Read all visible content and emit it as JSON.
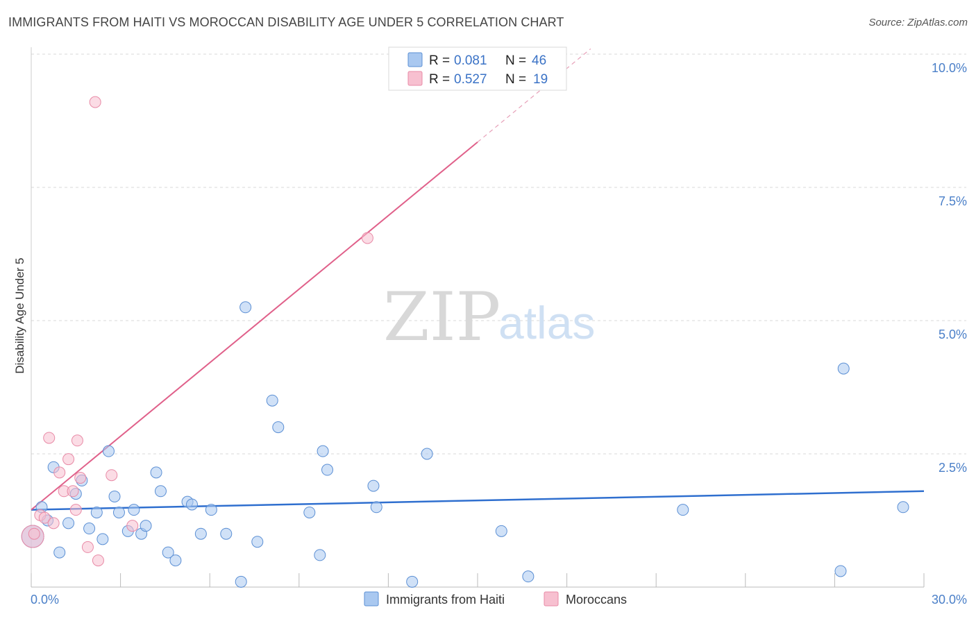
{
  "title": "IMMIGRANTS FROM HAITI VS MOROCCAN DISABILITY AGE UNDER 5 CORRELATION CHART",
  "source": "Source: ZipAtlas.com",
  "watermark": {
    "zip": "ZIP",
    "atlas": "atlas"
  },
  "legend": {
    "rows": [
      {
        "r_label": "R =",
        "r_value": "0.081",
        "n_label": "N =",
        "n_value": "46",
        "color": "#a9c8f0",
        "border": "#5b8fd4"
      },
      {
        "r_label": "R =",
        "r_value": "0.527",
        "n_label": "N =",
        "n_value": "19",
        "color": "#f7c0d0",
        "border": "#e88aa6"
      }
    ]
  },
  "chart_data": {
    "type": "scatter",
    "title": "IMMIGRANTS FROM HAITI VS MOROCCAN DISABILITY AGE UNDER 5 CORRELATION CHART",
    "xlabel": "",
    "ylabel": "Disability Age Under 5",
    "xlim": [
      0,
      30
    ],
    "ylim": [
      0,
      10
    ],
    "x_tick_labels": [
      "0.0%",
      "30.0%"
    ],
    "y_ticks": [
      2.5,
      5.0,
      7.5,
      10.0
    ],
    "y_tick_labels": [
      "2.5%",
      "5.0%",
      "7.5%",
      "10.0%"
    ],
    "grid": true,
    "series": [
      {
        "name": "Immigrants from Haiti",
        "color": "#a9c8f0",
        "edge": "#5b8fd4",
        "trend": {
          "x0": 0,
          "y0": 1.45,
          "x1": 30,
          "y1": 1.8,
          "color": "#2f6fcf"
        },
        "points": [
          [
            0.05,
            0.95
          ],
          [
            0.35,
            1.5
          ],
          [
            0.55,
            1.25
          ],
          [
            0.75,
            2.25
          ],
          [
            0.95,
            0.65
          ],
          [
            1.25,
            1.2
          ],
          [
            1.5,
            1.75
          ],
          [
            1.7,
            2.0
          ],
          [
            1.95,
            1.1
          ],
          [
            2.2,
            1.4
          ],
          [
            2.4,
            0.9
          ],
          [
            2.6,
            2.55
          ],
          [
            2.8,
            1.7
          ],
          [
            2.95,
            1.4
          ],
          [
            3.25,
            1.05
          ],
          [
            3.45,
            1.45
          ],
          [
            3.7,
            1.0
          ],
          [
            3.85,
            1.15
          ],
          [
            4.2,
            2.15
          ],
          [
            4.35,
            1.8
          ],
          [
            4.6,
            0.65
          ],
          [
            4.85,
            0.5
          ],
          [
            5.25,
            1.6
          ],
          [
            5.4,
            1.55
          ],
          [
            5.7,
            1.0
          ],
          [
            6.05,
            1.45
          ],
          [
            6.55,
            1.0
          ],
          [
            7.05,
            0.1
          ],
          [
            7.2,
            5.25
          ],
          [
            7.6,
            0.85
          ],
          [
            8.1,
            3.5
          ],
          [
            8.3,
            3.0
          ],
          [
            9.35,
            1.4
          ],
          [
            9.7,
            0.6
          ],
          [
            9.8,
            2.55
          ],
          [
            9.95,
            2.2
          ],
          [
            11.5,
            1.9
          ],
          [
            11.6,
            1.5
          ],
          [
            12.8,
            0.1
          ],
          [
            13.3,
            2.5
          ],
          [
            15.8,
            1.05
          ],
          [
            16.7,
            0.2
          ],
          [
            21.9,
            1.45
          ],
          [
            27.3,
            4.1
          ],
          [
            27.2,
            0.3
          ],
          [
            29.3,
            1.5
          ]
        ]
      },
      {
        "name": "Moroccans",
        "color": "#f7c0d0",
        "edge": "#e88aa6",
        "trend": {
          "x0": 0,
          "y0": 1.45,
          "x1": 15,
          "y1": 8.35,
          "dash_x1": 18.8,
          "dash_y1": 10.1,
          "color": "#e0608a"
        },
        "points": [
          [
            0.05,
            0.95
          ],
          [
            0.3,
            1.35
          ],
          [
            0.45,
            1.3
          ],
          [
            0.6,
            2.8
          ],
          [
            0.75,
            1.2
          ],
          [
            0.95,
            2.15
          ],
          [
            1.1,
            1.8
          ],
          [
            1.25,
            2.4
          ],
          [
            1.4,
            1.8
          ],
          [
            1.5,
            1.45
          ],
          [
            1.55,
            2.75
          ],
          [
            1.65,
            2.05
          ],
          [
            1.9,
            0.75
          ],
          [
            2.25,
            0.5
          ],
          [
            2.15,
            9.1
          ],
          [
            2.7,
            2.1
          ],
          [
            3.4,
            1.15
          ],
          [
            11.3,
            6.55
          ],
          [
            0.1,
            1.0
          ]
        ]
      }
    ]
  },
  "bottom_legend": [
    {
      "label": "Immigrants from Haiti",
      "color": "#a9c8f0",
      "border": "#5b8fd4"
    },
    {
      "label": "Moroccans",
      "color": "#f7c0d0",
      "border": "#e88aa6"
    }
  ]
}
